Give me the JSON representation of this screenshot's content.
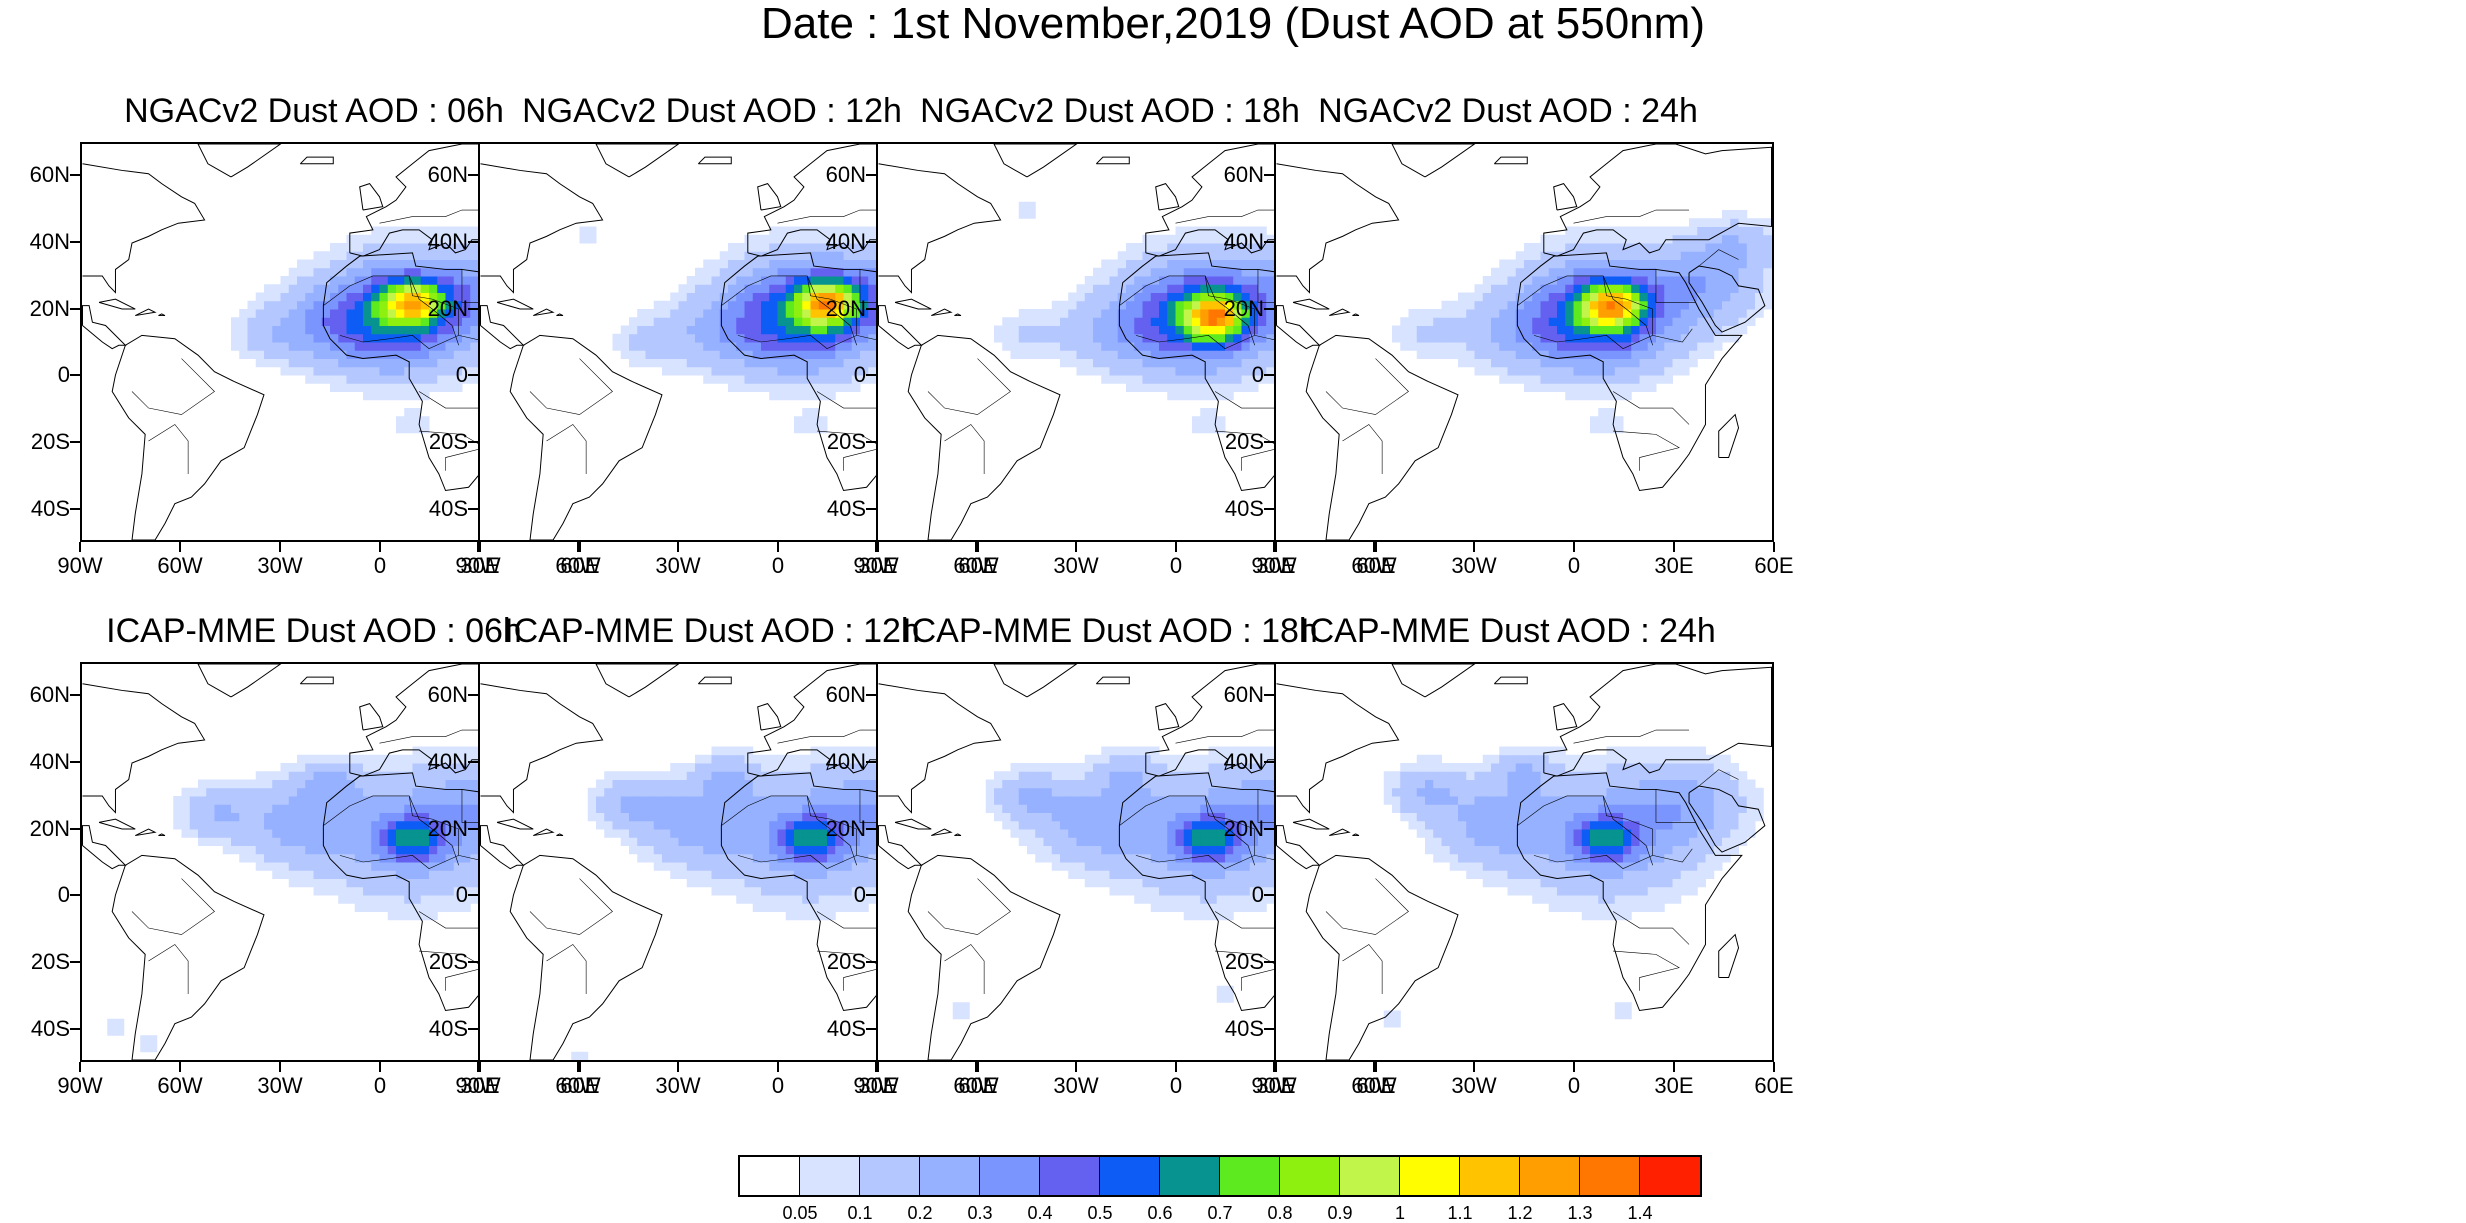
{
  "title": "Date : 1st November,2019 (Dust AOD at 550nm)",
  "panels": [
    {
      "title": "NGACv2 Dust AOD : 06h",
      "model": "NGACv2",
      "lead": "06h"
    },
    {
      "title": "NGACv2 Dust AOD : 12h",
      "model": "NGACv2",
      "lead": "12h"
    },
    {
      "title": "NGACv2 Dust AOD : 18h",
      "model": "NGACv2",
      "lead": "18h"
    },
    {
      "title": "NGACv2 Dust AOD : 24h",
      "model": "NGACv2",
      "lead": "24h"
    },
    {
      "title": "ICAP-MME Dust AOD : 06h",
      "model": "ICAP-MME",
      "lead": "06h"
    },
    {
      "title": "ICAP-MME Dust AOD : 12h",
      "model": "ICAP-MME",
      "lead": "12h"
    },
    {
      "title": "ICAP-MME Dust AOD : 18h",
      "model": "ICAP-MME",
      "lead": "18h"
    },
    {
      "title": "ICAP-MME Dust AOD : 24h",
      "model": "ICAP-MME",
      "lead": "24h"
    }
  ],
  "map": {
    "lon_range": [
      -90,
      60
    ],
    "lat_range": [
      -50,
      70
    ],
    "lat_ticks": [
      {
        "value": 60,
        "label": "60N"
      },
      {
        "value": 40,
        "label": "40N"
      },
      {
        "value": 20,
        "label": "20N"
      },
      {
        "value": 0,
        "label": "0"
      },
      {
        "value": -20,
        "label": "20S"
      },
      {
        "value": -40,
        "label": "40S"
      }
    ],
    "lon_ticks": [
      {
        "value": -90,
        "label": "90W"
      },
      {
        "value": -60,
        "label": "60W"
      },
      {
        "value": -30,
        "label": "30W"
      },
      {
        "value": 0,
        "label": "0"
      },
      {
        "value": 30,
        "label": "30E"
      },
      {
        "value": 60,
        "label": "60E"
      }
    ]
  },
  "colorbar": {
    "colors": [
      "#ffffff",
      "#d7e3ff",
      "#b4c7ff",
      "#95b1ff",
      "#7b95ff",
      "#6461f0",
      "#0d5cf5",
      "#079390",
      "#5dea1e",
      "#8df00f",
      "#c2f54a",
      "#fffd00",
      "#ffc300",
      "#ff9e00",
      "#ff7700",
      "#ff2000"
    ],
    "labels": [
      "0.05",
      "0.1",
      "0.2",
      "0.3",
      "0.4",
      "0.5",
      "0.6",
      "0.7",
      "0.8",
      "0.9",
      "1",
      "1.1",
      "1.2",
      "1.3",
      "1.4"
    ]
  },
  "dust_fields": {
    "NGACv2_06h": [
      [
        10,
        20,
        22,
        0.35
      ],
      [
        0,
        16,
        18,
        0.3
      ],
      [
        35,
        25,
        16,
        0.2
      ],
      [
        -20,
        15,
        14,
        0.15
      ],
      [
        10,
        22,
        8,
        0.7
      ],
      [
        -35,
        12,
        10,
        0.1
      ],
      [
        45,
        35,
        10,
        0.12
      ],
      [
        10,
        -15,
        5,
        0.1
      ]
    ],
    "NGACv2_12h": [
      [
        10,
        20,
        22,
        0.35
      ],
      [
        5,
        16,
        18,
        0.3
      ],
      [
        35,
        25,
        16,
        0.22
      ],
      [
        -20,
        13,
        14,
        0.15
      ],
      [
        15,
        22,
        8,
        0.75
      ],
      [
        -40,
        10,
        10,
        0.1
      ],
      [
        50,
        40,
        10,
        0.12
      ],
      [
        10,
        -15,
        5,
        0.1
      ],
      [
        -58,
        42,
        4,
        0.08
      ]
    ],
    "NGACv2_18h": [
      [
        10,
        20,
        22,
        0.35
      ],
      [
        5,
        16,
        18,
        0.3
      ],
      [
        40,
        25,
        16,
        0.2
      ],
      [
        -20,
        13,
        14,
        0.15
      ],
      [
        12,
        18,
        8,
        0.75
      ],
      [
        -45,
        12,
        10,
        0.1
      ],
      [
        50,
        40,
        10,
        0.12
      ],
      [
        10,
        -15,
        5,
        0.08
      ],
      [
        -45,
        50,
        4,
        0.08
      ]
    ],
    "NGACv2_24h": [
      [
        10,
        20,
        22,
        0.35
      ],
      [
        5,
        16,
        18,
        0.3
      ],
      [
        40,
        28,
        16,
        0.22
      ],
      [
        -20,
        13,
        14,
        0.15
      ],
      [
        12,
        21,
        8,
        0.75
      ],
      [
        -45,
        13,
        10,
        0.1
      ],
      [
        50,
        40,
        10,
        0.15
      ],
      [
        10,
        -15,
        5,
        0.08
      ]
    ],
    "ICAP-MME_06h": [
      [
        10,
        18,
        24,
        0.28
      ],
      [
        -25,
        22,
        16,
        0.22
      ],
      [
        -50,
        25,
        10,
        0.18
      ],
      [
        35,
        28,
        16,
        0.2
      ],
      [
        -15,
        35,
        8,
        0.15
      ],
      [
        10,
        17,
        8,
        0.42
      ],
      [
        -70,
        -45,
        4,
        0.1
      ],
      [
        -80,
        -40,
        3,
        0.08
      ]
    ],
    "ICAP-MME_12h": [
      [
        10,
        18,
        24,
        0.28
      ],
      [
        -25,
        22,
        16,
        0.22
      ],
      [
        -45,
        28,
        10,
        0.18
      ],
      [
        35,
        28,
        16,
        0.2
      ],
      [
        -15,
        36,
        8,
        0.15
      ],
      [
        10,
        17,
        8,
        0.42
      ],
      [
        -60,
        -48,
        3,
        0.08
      ]
    ],
    "ICAP-MME_18h": [
      [
        10,
        18,
        24,
        0.28
      ],
      [
        -25,
        22,
        16,
        0.22
      ],
      [
        -45,
        30,
        10,
        0.18
      ],
      [
        35,
        28,
        16,
        0.2
      ],
      [
        -15,
        37,
        8,
        0.15
      ],
      [
        10,
        17,
        8,
        0.42
      ],
      [
        15,
        -30,
        3,
        0.1
      ],
      [
        -65,
        -35,
        3,
        0.08
      ]
    ],
    "ICAP-MME_24h": [
      [
        10,
        18,
        24,
        0.28
      ],
      [
        -25,
        22,
        16,
        0.22
      ],
      [
        -45,
        32,
        10,
        0.18
      ],
      [
        35,
        28,
        16,
        0.2
      ],
      [
        -15,
        38,
        8,
        0.15
      ],
      [
        10,
        17,
        8,
        0.42
      ],
      [
        -55,
        -38,
        3,
        0.1
      ],
      [
        15,
        -35,
        3,
        0.1
      ]
    ]
  }
}
